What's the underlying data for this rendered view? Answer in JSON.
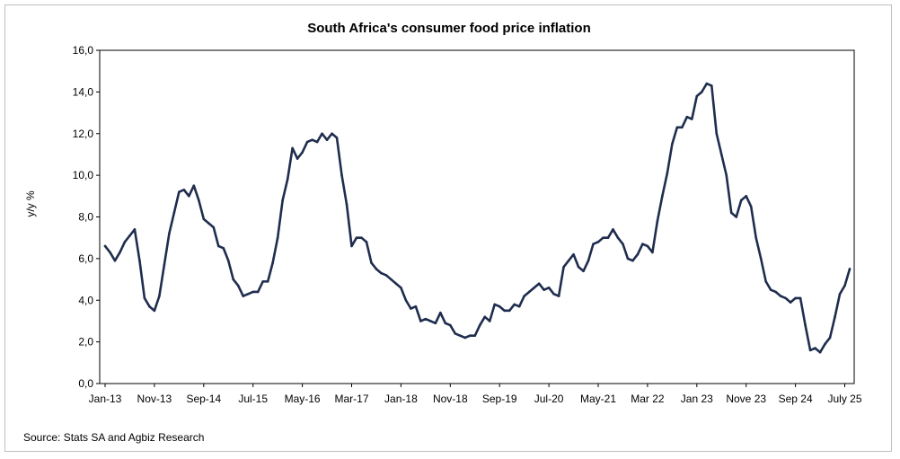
{
  "chart_data": {
    "type": "line",
    "title": "South Africa's consumer food price inflation",
    "ylabel": "y/y %",
    "xlabel": "",
    "ylim": [
      0,
      16
    ],
    "yticks": [
      "0,0",
      "2,0",
      "4,0",
      "6,0",
      "8,0",
      "10,0",
      "12,0",
      "14,0",
      "16,0"
    ],
    "xtick_labels": [
      "Jan-13",
      "Nov-13",
      "Sep-14",
      "Jul-15",
      "May-16",
      "Mar-17",
      "Jan-18",
      "Nov-18",
      "Sep-19",
      "Jul-20",
      "May-21",
      "Mar 22",
      "Jan 23",
      "Nove 23",
      "Sep 24",
      "July 25"
    ],
    "start_month": "Jan-13",
    "end_month": "Jul-25",
    "grid": false,
    "line_color": "#1f2d4e",
    "series": [
      {
        "name": "Consumer food price inflation (y/y %)",
        "values": [
          6.6,
          6.3,
          5.9,
          6.3,
          6.8,
          7.1,
          7.4,
          5.9,
          4.1,
          3.7,
          3.5,
          4.2,
          5.7,
          7.2,
          8.2,
          9.2,
          9.3,
          9.0,
          9.5,
          8.8,
          7.9,
          7.7,
          7.5,
          6.6,
          6.5,
          5.9,
          5.0,
          4.7,
          4.2,
          4.3,
          4.4,
          4.4,
          4.9,
          4.9,
          5.8,
          7.0,
          8.8,
          9.8,
          11.3,
          10.8,
          11.1,
          11.6,
          11.7,
          11.6,
          12.0,
          11.7,
          12.0,
          11.8,
          10.0,
          8.6,
          6.6,
          7.0,
          7.0,
          6.8,
          5.8,
          5.5,
          5.3,
          5.2,
          5.0,
          4.8,
          4.6,
          4.0,
          3.6,
          3.7,
          3.0,
          3.1,
          3.0,
          2.9,
          3.4,
          2.9,
          2.8,
          2.4,
          2.3,
          2.2,
          2.3,
          2.3,
          2.8,
          3.2,
          3.0,
          3.8,
          3.7,
          3.5,
          3.5,
          3.8,
          3.7,
          4.2,
          4.4,
          4.6,
          4.8,
          4.5,
          4.6,
          4.3,
          4.2,
          5.6,
          5.9,
          6.2,
          5.6,
          5.4,
          5.9,
          6.7,
          6.8,
          7.0,
          7.0,
          7.4,
          7.0,
          6.7,
          6.0,
          5.9,
          6.2,
          6.7,
          6.6,
          6.3,
          7.8,
          9.0,
          10.1,
          11.5,
          12.3,
          12.3,
          12.8,
          12.7,
          13.8,
          14.0,
          14.4,
          14.3,
          12.0,
          11.0,
          10.0,
          8.2,
          8.0,
          8.8,
          9.0,
          8.5,
          7.0,
          6.0,
          4.9,
          4.5,
          4.4,
          4.2,
          4.1,
          3.9,
          4.1,
          4.1,
          2.8,
          1.6,
          1.7,
          1.5,
          1.9,
          2.2,
          3.2,
          4.3,
          4.7,
          5.5
        ]
      }
    ]
  },
  "footer": {
    "source": "Source: Stats SA and Agbiz Research"
  }
}
